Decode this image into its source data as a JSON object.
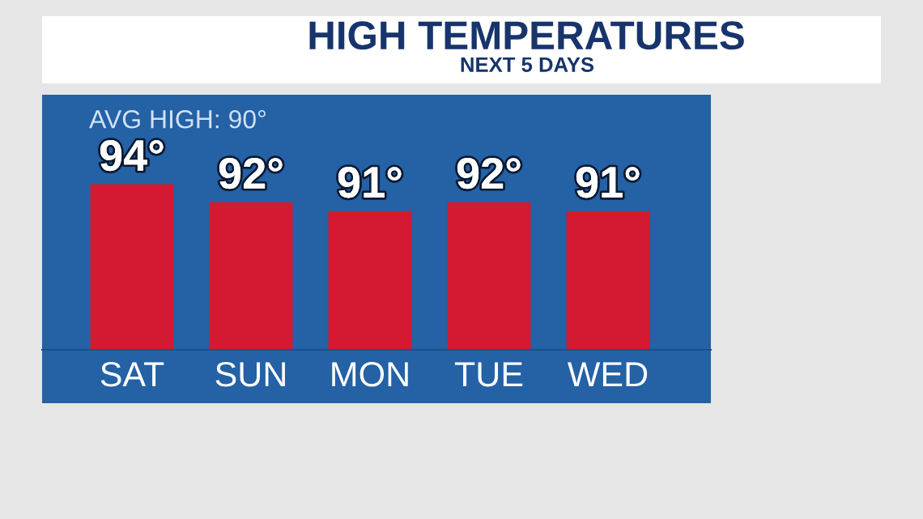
{
  "chart_data": {
    "type": "bar",
    "title": "HIGH TEMPERATURES",
    "subtitle": "NEXT 5 DAYS",
    "annotations": [
      "AVG HIGH: 90°"
    ],
    "categories": [
      "SAT",
      "SUN",
      "MON",
      "TUE",
      "WED"
    ],
    "values": [
      94,
      92,
      91,
      92,
      91
    ],
    "value_labels": [
      "94°",
      "92°",
      "91°",
      "92°",
      "91°"
    ],
    "color": "#d41a32",
    "ylim": [
      75.5,
      104
    ],
    "tick_labels": "x"
  }
}
